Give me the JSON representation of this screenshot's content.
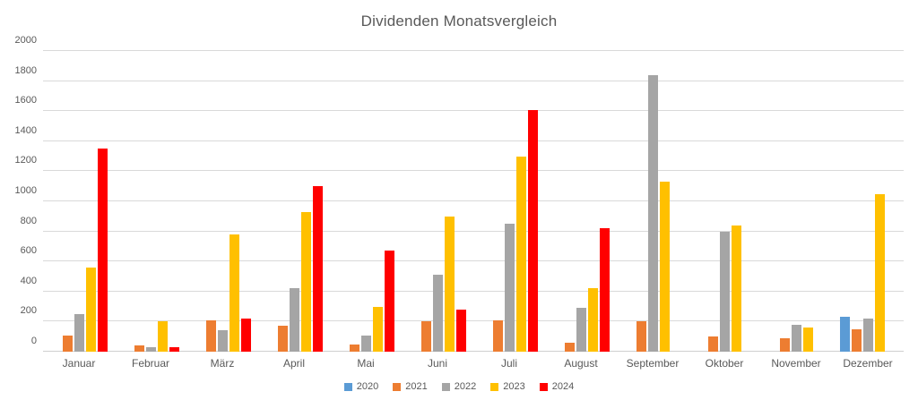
{
  "chart_data": {
    "type": "bar",
    "title": "Dividenden Monatsvergleich",
    "xlabel": "",
    "ylabel": "",
    "categories": [
      "Januar",
      "Februar",
      "März",
      "April",
      "Mai",
      "Juni",
      "Juli",
      "August",
      "September",
      "Oktober",
      "November",
      "Dezember"
    ],
    "series": [
      {
        "name": "2020",
        "color": "#5B9BD5",
        "values": [
          0,
          0,
          0,
          0,
          0,
          0,
          0,
          0,
          0,
          0,
          0,
          230
        ]
      },
      {
        "name": "2021",
        "color": "#ED7D31",
        "values": [
          110,
          40,
          210,
          170,
          50,
          200,
          210,
          60,
          200,
          100,
          90,
          150
        ]
      },
      {
        "name": "2022",
        "color": "#A5A5A5",
        "values": [
          250,
          30,
          140,
          420,
          110,
          510,
          850,
          290,
          1840,
          800,
          180,
          220
        ]
      },
      {
        "name": "2023",
        "color": "#FFC000",
        "values": [
          560,
          200,
          780,
          930,
          300,
          900,
          1300,
          420,
          1130,
          840,
          160,
          1050
        ]
      },
      {
        "name": "2024",
        "color": "#FF0000",
        "values": [
          1350,
          30,
          220,
          1100,
          670,
          280,
          1610,
          820,
          0,
          0,
          0,
          0
        ]
      }
    ],
    "ylim": [
      0,
      2000
    ],
    "yticks": [
      0,
      200,
      400,
      600,
      800,
      1000,
      1200,
      1400,
      1600,
      1800,
      2000
    ],
    "grid": "horizontal",
    "legend_position": "bottom"
  },
  "style": {
    "title_color": "#595959",
    "axis_text_color": "#595959",
    "gridline_color": "#D9D9D9",
    "background": "#FFFFFF"
  }
}
